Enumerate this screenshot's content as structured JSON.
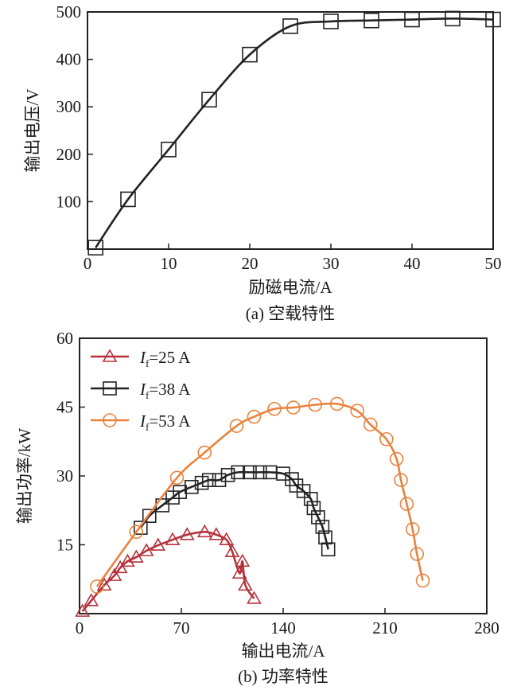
{
  "colors": {
    "axis": "#222222",
    "red": "#b5323a",
    "black": "#222222",
    "orange": "#e8823e"
  },
  "chart_data": [
    {
      "type": "line",
      "title": "",
      "caption": "(a) 空载特性",
      "xlabel": "励磁电流/A",
      "ylabel": "输出电压/V",
      "xlim": [
        0,
        50
      ],
      "ylim": [
        0,
        500
      ],
      "xticks": [
        0,
        10,
        20,
        30,
        40,
        50
      ],
      "yticks": [
        100,
        200,
        300,
        400,
        500
      ],
      "grid": false,
      "series": [
        {
          "name": "空载特性",
          "marker": "square",
          "color": "#222222",
          "x": [
            1,
            5,
            10,
            15,
            20,
            25,
            30,
            35,
            40,
            45,
            50
          ],
          "y": [
            3,
            105,
            210,
            315,
            410,
            470,
            480,
            482,
            484,
            486,
            484
          ]
        }
      ]
    },
    {
      "type": "line",
      "caption": "(b) 功率特性",
      "xlabel": "输出电流/A",
      "ylabel": "输出功率/kW",
      "xlim": [
        0,
        280
      ],
      "ylim": [
        0,
        60
      ],
      "xticks": [
        0,
        70,
        140,
        210,
        280
      ],
      "yticks": [
        15,
        30,
        45,
        60
      ],
      "grid": false,
      "legend_position": "top-left",
      "series": [
        {
          "name": "If=25 A",
          "label_main": "I",
          "label_sub": "f",
          "label_rest": "=25 A",
          "marker": "triangle",
          "color": "#b5323a",
          "x": [
            2,
            8,
            17,
            24,
            28,
            33,
            39,
            46,
            54,
            64,
            74,
            86,
            94,
            101,
            105,
            110,
            112,
            114,
            120
          ],
          "y": [
            0.5,
            2.8,
            6.2,
            8.3,
            10,
            11.4,
            12.3,
            13.7,
            14.9,
            16.1,
            17.2,
            17.8,
            17.2,
            16.1,
            13.5,
            8.8,
            11.4,
            6.2,
            3.3
          ]
        },
        {
          "name": "If=38 A",
          "label_main": "I",
          "label_sub": "f",
          "label_rest": "=38 A",
          "marker": "square",
          "color": "#222222",
          "x": [
            42,
            48,
            57,
            64,
            69,
            77,
            84,
            89,
            96,
            102,
            109,
            117,
            124,
            131,
            140,
            146,
            149,
            154,
            159,
            161,
            164,
            167,
            169,
            171
          ],
          "y": [
            18.7,
            21.3,
            23.6,
            25.3,
            26.5,
            27.6,
            28.5,
            29.1,
            29.1,
            30.2,
            30.8,
            30.8,
            30.8,
            30.8,
            30.5,
            29.3,
            27.9,
            26.7,
            25,
            23,
            21,
            18.9,
            16.6,
            14
          ]
        },
        {
          "name": "If=53 A",
          "label_main": "I",
          "label_sub": "f",
          "label_rest": "=53 A",
          "marker": "circle",
          "color": "#e8823e",
          "x": [
            12,
            39,
            67,
            86,
            108,
            120,
            134,
            147,
            162,
            177,
            191,
            200,
            211,
            218,
            221,
            225,
            229,
            232,
            236
          ],
          "y": [
            5.9,
            17.8,
            29.6,
            35.1,
            40.9,
            42.9,
            44.6,
            44.9,
            45.5,
            45.7,
            44.2,
            41.2,
            38,
            33.7,
            29.1,
            23.9,
            18.4,
            13,
            7.2
          ]
        }
      ]
    }
  ]
}
